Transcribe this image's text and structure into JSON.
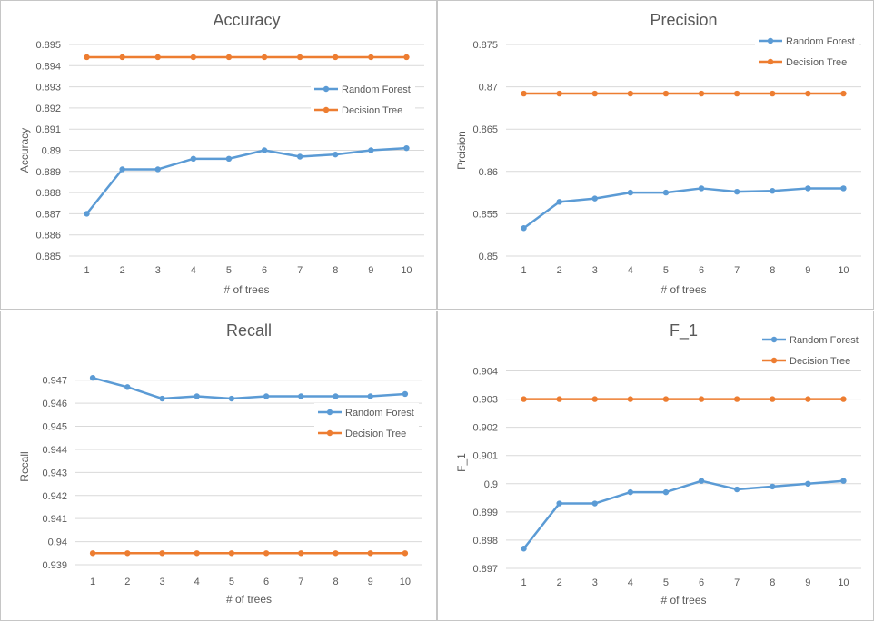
{
  "colors": {
    "random_forest": "#5b9bd5",
    "decision_tree": "#ed7d31"
  },
  "chart_data": [
    {
      "type": "line",
      "title": "Accuracy",
      "xlabel": "# of trees",
      "ylabel": "Accuracy",
      "categories": [
        "1",
        "2",
        "3",
        "4",
        "5",
        "6",
        "7",
        "8",
        "9",
        "10"
      ],
      "ylim": [
        0.885,
        0.895
      ],
      "yticks": [
        "0.885",
        "0.886",
        "0.887",
        "0.888",
        "0.889",
        "0.89",
        "0.891",
        "0.892",
        "0.893",
        "0.894",
        "0.895"
      ],
      "legend_position": "right",
      "series": [
        {
          "name": "Random Forest",
          "color": "#5b9bd5",
          "values": [
            0.887,
            0.8891,
            0.8891,
            0.8896,
            0.8896,
            0.89,
            0.8897,
            0.8898,
            0.89,
            0.8901
          ]
        },
        {
          "name": "Decision Tree",
          "color": "#ed7d31",
          "values": [
            0.8944,
            0.8944,
            0.8944,
            0.8944,
            0.8944,
            0.8944,
            0.8944,
            0.8944,
            0.8944,
            0.8944
          ]
        }
      ]
    },
    {
      "type": "line",
      "title": "Precision",
      "xlabel": "# of trees",
      "ylabel": "Prcision",
      "categories": [
        "1",
        "2",
        "3",
        "4",
        "5",
        "6",
        "7",
        "8",
        "9",
        "10"
      ],
      "ylim": [
        0.85,
        0.875
      ],
      "yticks": [
        "0.85",
        "0.855",
        "0.86",
        "0.865",
        "0.87",
        "0.875"
      ],
      "legend_position": "top-right",
      "series": [
        {
          "name": "Random Forest",
          "color": "#5b9bd5",
          "values": [
            0.8533,
            0.8564,
            0.8568,
            0.8575,
            0.8575,
            0.858,
            0.8576,
            0.8577,
            0.858,
            0.858
          ]
        },
        {
          "name": "Decision Tree",
          "color": "#ed7d31",
          "values": [
            0.8692,
            0.8692,
            0.8692,
            0.8692,
            0.8692,
            0.8692,
            0.8692,
            0.8692,
            0.8692,
            0.8692
          ]
        }
      ]
    },
    {
      "type": "line",
      "title": "Recall",
      "xlabel": "# of trees",
      "ylabel": "Recall",
      "categories": [
        "1",
        "2",
        "3",
        "4",
        "5",
        "6",
        "7",
        "8",
        "9",
        "10"
      ],
      "ylim": [
        0.939,
        0.9475
      ],
      "yticks": [
        "0.939",
        "0.94",
        "0.941",
        "0.942",
        "0.943",
        "0.944",
        "0.945",
        "0.946",
        "0.947"
      ],
      "legend_position": "right",
      "series": [
        {
          "name": "Random Forest",
          "color": "#5b9bd5",
          "values": [
            0.9471,
            0.9467,
            0.9462,
            0.9463,
            0.9462,
            0.9463,
            0.9463,
            0.9463,
            0.9463,
            0.9464
          ]
        },
        {
          "name": "Decision Tree",
          "color": "#ed7d31",
          "values": [
            0.9395,
            0.9395,
            0.9395,
            0.9395,
            0.9395,
            0.9395,
            0.9395,
            0.9395,
            0.9395,
            0.9395
          ]
        }
      ]
    },
    {
      "type": "line",
      "title": "F_1",
      "xlabel": "# of trees",
      "ylabel": "F_1",
      "categories": [
        "1",
        "2",
        "3",
        "4",
        "5",
        "6",
        "7",
        "8",
        "9",
        "10"
      ],
      "ylim": [
        0.897,
        0.9045
      ],
      "yticks": [
        "0.897",
        "0.898",
        "0.899",
        "0.9",
        "0.901",
        "0.902",
        "0.903",
        "0.904"
      ],
      "legend_position": "top-right",
      "series": [
        {
          "name": "Random Forest",
          "color": "#5b9bd5",
          "values": [
            0.8977,
            0.8993,
            0.8993,
            0.8997,
            0.8997,
            0.9001,
            0.8998,
            0.8999,
            0.9,
            0.9001
          ]
        },
        {
          "name": "Decision Tree",
          "color": "#ed7d31",
          "values": [
            0.903,
            0.903,
            0.903,
            0.903,
            0.903,
            0.903,
            0.903,
            0.903,
            0.903,
            0.903
          ]
        }
      ]
    }
  ]
}
